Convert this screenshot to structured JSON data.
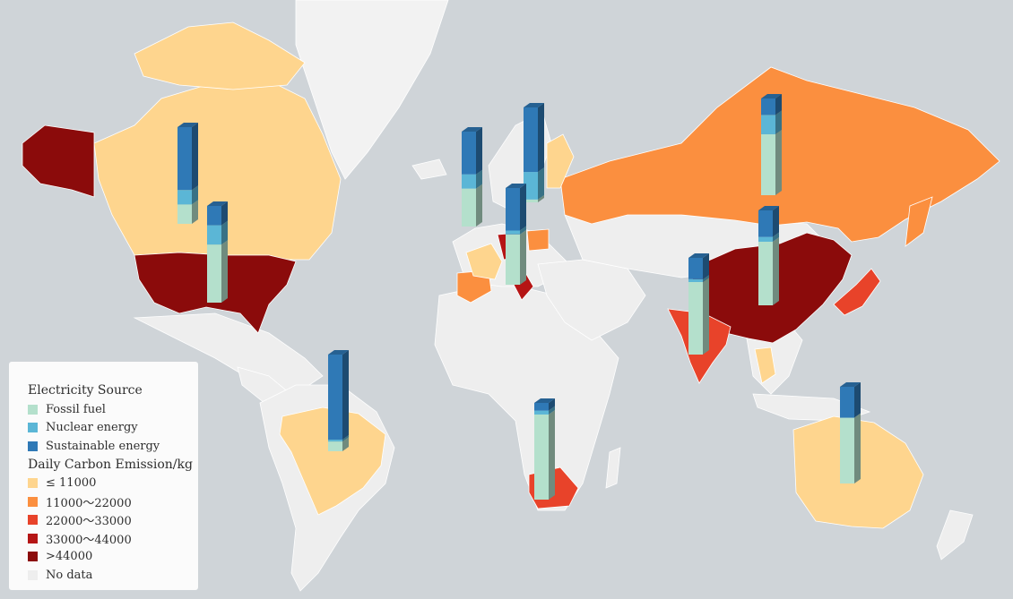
{
  "legend": {
    "source_title": "Electricity Source",
    "sources": [
      {
        "label": "Fossil fuel",
        "color": "#b4e0cc"
      },
      {
        "label": "Nuclear energy",
        "color": "#5bb6d6"
      },
      {
        "label": "Sustainable energy",
        "color": "#2f79b6"
      }
    ],
    "emission_title": "Daily Carbon Emission/kg",
    "emission_classes": [
      {
        "label": "≤ 11000",
        "color": "#fed58e"
      },
      {
        "label": "11000〜22000",
        "color": "#fb8f3f"
      },
      {
        "label": "22000〜33000",
        "color": "#e8432a"
      },
      {
        "label": "33000〜44000",
        "color": "#b51515"
      },
      {
        "label": ">44000",
        "color": "#8b0b0b"
      },
      {
        "label": "No data",
        "color": "#eeeeee"
      }
    ]
  },
  "colors": {
    "ocean": "#cfd4d8",
    "land_no_data": "#eeeeee",
    "greenland": "#f2f2f2"
  },
  "regions": [
    {
      "name": "canada",
      "class": "≤ 11000"
    },
    {
      "name": "alaska",
      "class": ">44000"
    },
    {
      "name": "usa",
      "class": ">44000"
    },
    {
      "name": "brazil",
      "class": "≤ 11000"
    },
    {
      "name": "russia",
      "class": "11000〜22000"
    },
    {
      "name": "china",
      "class": ">44000"
    },
    {
      "name": "india",
      "class": "22000〜33000"
    },
    {
      "name": "japan",
      "class": "22000〜33000"
    },
    {
      "name": "australia",
      "class": "≤ 11000"
    },
    {
      "name": "south-africa",
      "class": "22000〜33000"
    },
    {
      "name": "spain",
      "class": "11000〜22000"
    },
    {
      "name": "france",
      "class": "≤ 11000"
    },
    {
      "name": "germany",
      "class": "33000〜44000"
    },
    {
      "name": "italy",
      "class": "33000〜44000"
    },
    {
      "name": "poland",
      "class": "11000〜22000"
    },
    {
      "name": "finland",
      "class": "≤ 11000"
    },
    {
      "name": "thailand",
      "class": "≤ 11000"
    }
  ],
  "energy_mix": [
    {
      "name": "canada",
      "fossil": 0.2,
      "nuclear": 0.15,
      "sustainable": 0.65
    },
    {
      "name": "usa",
      "fossil": 0.6,
      "nuclear": 0.2,
      "sustainable": 0.2
    },
    {
      "name": "brazil",
      "fossil": 0.1,
      "nuclear": 0.02,
      "sustainable": 0.88
    },
    {
      "name": "uk",
      "fossil": 0.4,
      "nuclear": 0.15,
      "sustainable": 0.45
    },
    {
      "name": "sweden",
      "fossil": 0.03,
      "nuclear": 0.29,
      "sustainable": 0.68
    },
    {
      "name": "germany",
      "fossil": 0.52,
      "nuclear": 0.04,
      "sustainable": 0.44
    },
    {
      "name": "russia",
      "fossil": 0.63,
      "nuclear": 0.2,
      "sustainable": 0.17
    },
    {
      "name": "china",
      "fossil": 0.67,
      "nuclear": 0.05,
      "sustainable": 0.28
    },
    {
      "name": "india",
      "fossil": 0.75,
      "nuclear": 0.03,
      "sustainable": 0.22
    },
    {
      "name": "south-africa",
      "fossil": 0.88,
      "nuclear": 0.04,
      "sustainable": 0.08
    },
    {
      "name": "australia",
      "fossil": 0.68,
      "nuclear": 0.0,
      "sustainable": 0.32
    }
  ]
}
